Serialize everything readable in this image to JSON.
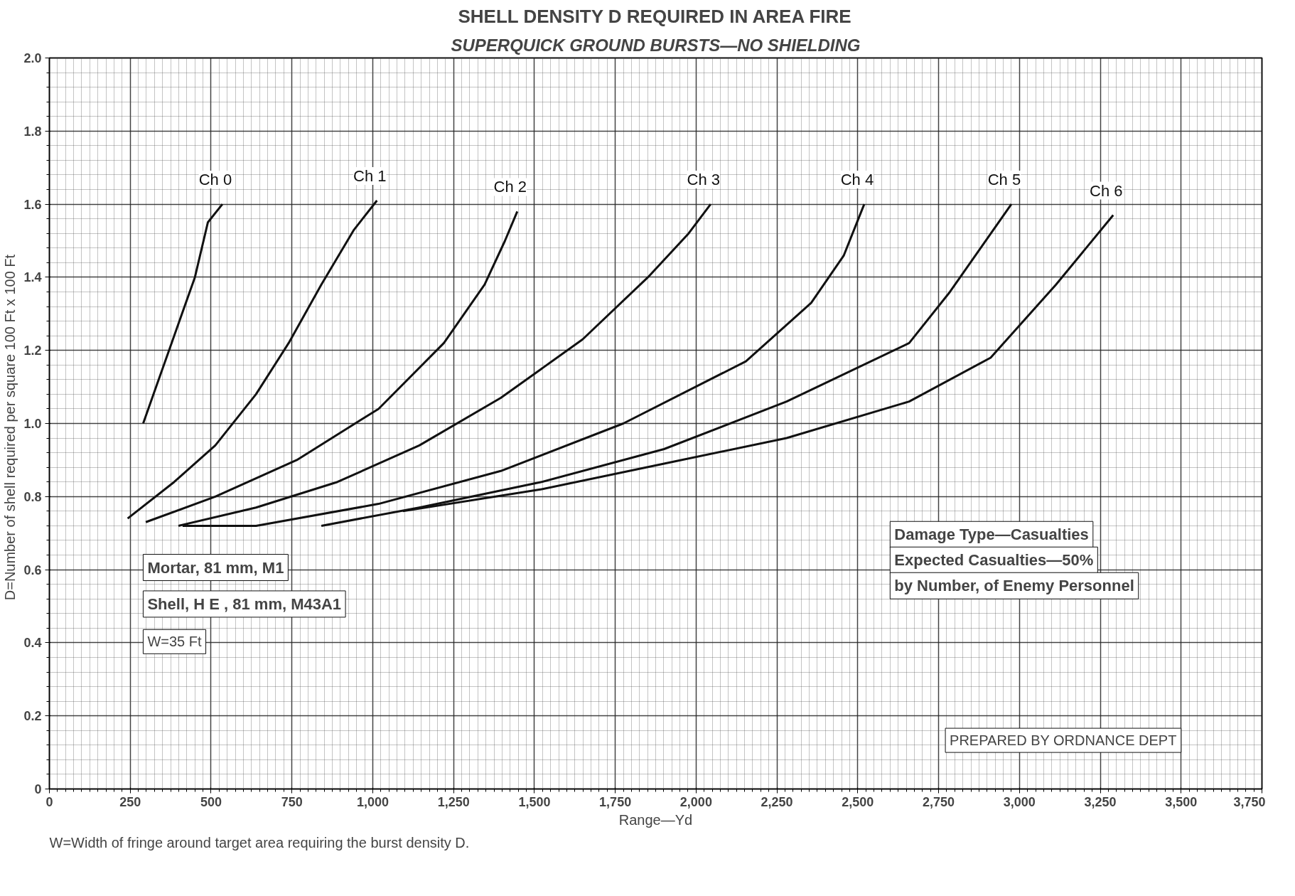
{
  "chart_data": {
    "type": "line",
    "title": "SHELL DENSITY D REQUIRED IN AREA FIRE",
    "subtitle": "SUPERQUICK GROUND BURSTS—NO SHIELDING",
    "xlabel": "Range—Yd",
    "ylabel": "D=Number of shell  required per square 100 Ft  x 100 Ft",
    "xlim": [
      0,
      3750
    ],
    "ylim": [
      0,
      2.0
    ],
    "xticks": [
      0,
      250,
      500,
      750,
      {
        "value": 1000,
        "label": "1,000"
      },
      {
        "value": 1250,
        "label": "1,250"
      },
      {
        "value": 1500,
        "label": "1,500"
      },
      {
        "value": 1750,
        "label": "1,750"
      },
      {
        "value": 2000,
        "label": "2,000"
      },
      {
        "value": 2250,
        "label": "2,250"
      },
      {
        "value": 2500,
        "label": "2,500"
      },
      {
        "value": 2750,
        "label": "2,750"
      },
      {
        "value": 3000,
        "label": "3,000"
      },
      {
        "value": 3250,
        "label": "3,250"
      },
      {
        "value": 3500,
        "label": "3,500"
      },
      {
        "value": 3750,
        "label": "3,750"
      }
    ],
    "yticks": [
      0,
      0.2,
      0.4,
      0.6,
      0.8,
      {
        "value": 1.0,
        "label": "1.0"
      },
      1.2,
      1.4,
      1.6,
      1.8,
      {
        "value": 2.0,
        "label": "2.0"
      }
    ],
    "grid": true,
    "marker": "none",
    "line_style": "solid",
    "series": [
      {
        "name": "Ch 0",
        "color": "#111111",
        "x": [
          290,
          330,
          370,
          410,
          450,
          490,
          535
        ],
        "values": [
          1.0,
          1.1,
          1.2,
          1.3,
          1.4,
          1.55,
          1.6
        ]
      },
      {
        "name": "Ch 1",
        "color": "#111111",
        "x": [
          242,
          386,
          513,
          639,
          740,
          841,
          942,
          1013
        ],
        "values": [
          0.74,
          0.84,
          0.94,
          1.08,
          1.22,
          1.38,
          1.53,
          1.61
        ]
      },
      {
        "name": "Ch 2",
        "color": "#111111",
        "x": [
          298,
          513,
          765,
          1018,
          1220,
          1346,
          1409,
          1447
        ],
        "values": [
          0.73,
          0.8,
          0.9,
          1.04,
          1.22,
          1.38,
          1.5,
          1.58
        ]
      },
      {
        "name": "Ch 3",
        "color": "#111111",
        "x": [
          399,
          639,
          891,
          1144,
          1396,
          1649,
          1851,
          1977,
          2045
        ],
        "values": [
          0.72,
          0.77,
          0.84,
          0.94,
          1.07,
          1.23,
          1.4,
          1.52,
          1.6
        ]
      },
      {
        "name": "Ch 4",
        "color": "#111111",
        "x": [
          412,
          639,
          1018,
          1396,
          1775,
          2154,
          2356,
          2457,
          2520
        ],
        "values": [
          0.72,
          0.72,
          0.78,
          0.87,
          1.0,
          1.17,
          1.33,
          1.46,
          1.6
        ]
      },
      {
        "name": "Ch 5",
        "color": "#111111",
        "x": [
          841,
          1144,
          1522,
          1901,
          2280,
          2659,
          2785,
          2975
        ],
        "values": [
          0.72,
          0.77,
          0.84,
          0.93,
          1.06,
          1.22,
          1.36,
          1.6
        ]
      },
      {
        "name": "Ch 6",
        "color": "#111111",
        "x": [
          1093,
          1522,
          1901,
          2280,
          2659,
          2911,
          3113,
          3290
        ],
        "values": [
          0.76,
          0.82,
          0.89,
          0.96,
          1.06,
          1.18,
          1.38,
          1.57
        ]
      }
    ],
    "annotations": [
      "Mortar, 81 mm, M1",
      "Shell, H E , 81 mm, M43A1",
      "W=35 Ft",
      "Damage Type—Casualties",
      "Expected Casualties—50%",
      "by Number, of Enemy Personnel",
      "PREPARED BY ORDNANCE DEPT",
      "W=Width of fringe around target area requiring the burst density D."
    ]
  }
}
